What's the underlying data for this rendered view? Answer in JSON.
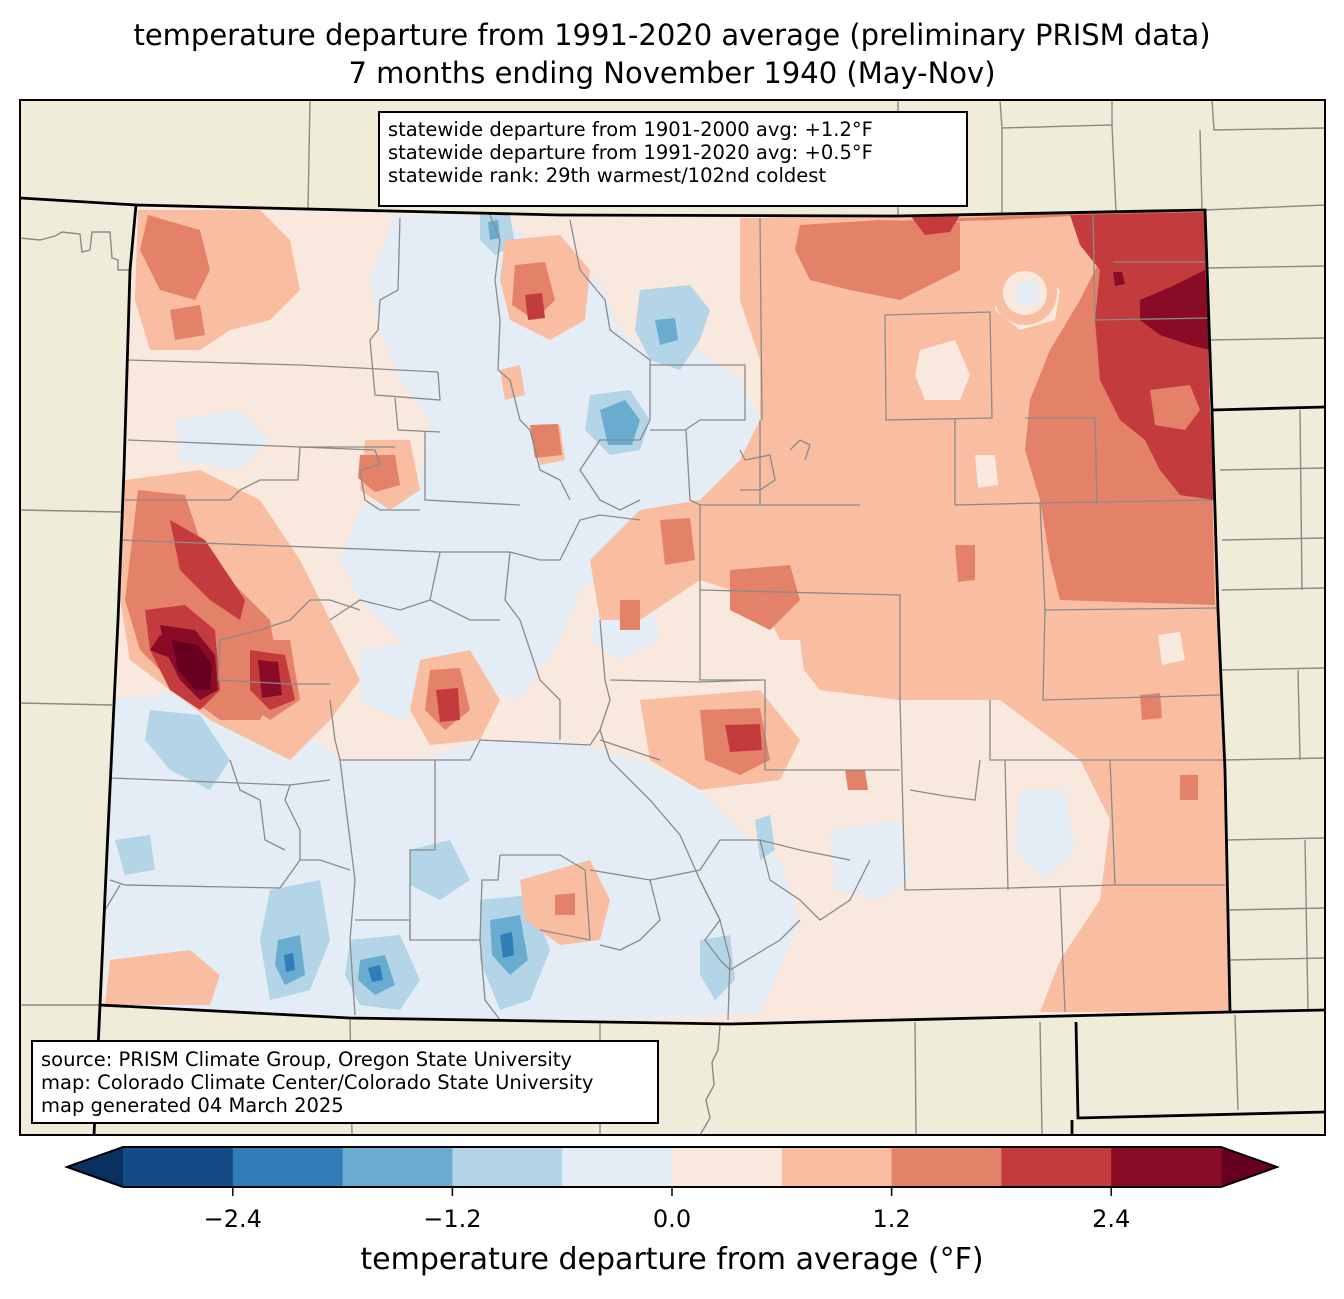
{
  "title": {
    "line1": "temperature departure from 1991-2020 average (preliminary PRISM data)",
    "line2": "7 months ending November 1940 (May-Nov)"
  },
  "stats_box": {
    "line1": "statewide departure from 1901-2000 avg: +1.2°F",
    "line2": "statewide departure from 1991-2020 avg: +0.5°F",
    "line3": "statewide rank: 29th warmest/102nd coldest"
  },
  "source_box": {
    "line1": "source: PRISM Climate Group, Oregon State University",
    "line2": "map: Colorado Climate Center/Colorado State University",
    "line3": "map generated 04 March 2025"
  },
  "colorbar": {
    "label": "temperature departure from average (°F)",
    "min": -3.0,
    "max": 3.0,
    "levels": [
      -3.0,
      -2.4,
      -1.8,
      -1.2,
      -0.6,
      0.0,
      0.6,
      1.2,
      1.8,
      2.4,
      3.0
    ],
    "colors": [
      "#134b87",
      "#327db7",
      "#6aacd0",
      "#b3d5e7",
      "#e4edf5",
      "#f9e8de",
      "#f9bda2",
      "#e48169",
      "#c43b3d",
      "#8a0b25"
    ],
    "under_color": "#083060",
    "over_color": "#670020",
    "ticks": [
      {
        "value": -2.4,
        "label": "−2.4"
      },
      {
        "value": -1.2,
        "label": "−1.2"
      },
      {
        "value": 0.0,
        "label": "0.0"
      },
      {
        "value": 1.2,
        "label": "1.2"
      },
      {
        "value": 2.4,
        "label": "2.4"
      }
    ]
  },
  "map_colors": {
    "land_outside": "#efedd9",
    "county_line": "#8a8a8a",
    "state_line": "#000000"
  },
  "chart_data": {
    "type": "heatmap",
    "title": "temperature departure from 1991-2020 average (preliminary PRISM data) — 7 months ending November 1940 (May-Nov)",
    "region": "Colorado",
    "units": "°F",
    "statewide_departure_1901_2000": 1.2,
    "statewide_departure_1991_2020": 0.5,
    "statewide_rank_warmest": 29,
    "statewide_rank_coldest": 102,
    "value_range": [
      -3.0,
      3.0
    ],
    "pattern_summary": [
      {
        "area": "northeast corner",
        "level": 2.4
      },
      {
        "area": "eastern plains",
        "level": 1.2
      },
      {
        "area": "west-central (Grand Junction area)",
        "level": 2.4
      },
      {
        "area": "northern mountains",
        "level": 0.0
      },
      {
        "area": "San Luis Valley / San Juans",
        "level": -1.2
      },
      {
        "area": "southeast",
        "level": 0.6
      }
    ]
  }
}
